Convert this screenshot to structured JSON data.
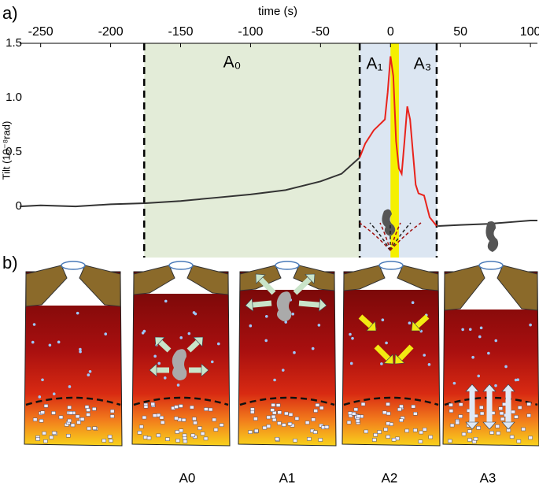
{
  "chart_data": {
    "type": "line",
    "panel_labels": [
      "a)",
      "b)"
    ],
    "x_label": "time (s)",
    "y_label": "Tilt (10⁻⁸rad)",
    "xlim": [
      -265,
      105
    ],
    "xticks": [
      -250,
      -200,
      -150,
      -100,
      -50,
      0,
      50,
      100
    ],
    "ylim": [
      -0.47,
      1.5
    ],
    "yticks": [
      0,
      0.5,
      {
        "value": 1,
        "label": "1.0"
      },
      {
        "value": 1.5,
        "label": "1.5"
      }
    ],
    "regions": [
      {
        "xlim": [
          -176,
          -22
        ],
        "color": "#e3ecd8"
      },
      {
        "xlim": [
          -22,
          33
        ],
        "color": "#dce6f2"
      },
      {
        "xlim": [
          0,
          6
        ],
        "color": "#f5f000"
      }
    ],
    "annotations": [
      "A₀",
      "A₁",
      "A₃"
    ],
    "series": [
      {
        "color": "#333333",
        "x": [
          -265,
          -250,
          -225,
          -200,
          -175,
          -150,
          -125,
          -100,
          -75,
          -50,
          -35,
          -22
        ],
        "values": [
          0.0,
          0.01,
          0.0,
          0.02,
          0.03,
          0.05,
          0.08,
          0.11,
          0.15,
          0.23,
          0.3,
          0.45
        ]
      },
      {
        "color": "#e8231c",
        "x": [
          -22,
          -18,
          -12,
          -8,
          -4,
          -2,
          0,
          2,
          4,
          6,
          8,
          10,
          12,
          14,
          16,
          18,
          20,
          24,
          28,
          33
        ],
        "values": [
          0.45,
          0.58,
          0.7,
          0.75,
          0.8,
          1.05,
          1.38,
          1.2,
          0.6,
          0.35,
          0.3,
          0.6,
          0.92,
          0.8,
          0.5,
          0.2,
          0.12,
          0.1,
          -0.1,
          -0.18
        ]
      },
      {
        "color": "#333333",
        "x": [
          34,
          50,
          70,
          90,
          100,
          105
        ],
        "values": [
          -0.18,
          -0.17,
          -0.16,
          -0.14,
          -0.13,
          -0.13
        ]
      }
    ],
    "stage_labels": [
      "A0",
      "A1",
      "A2",
      "A3"
    ]
  }
}
